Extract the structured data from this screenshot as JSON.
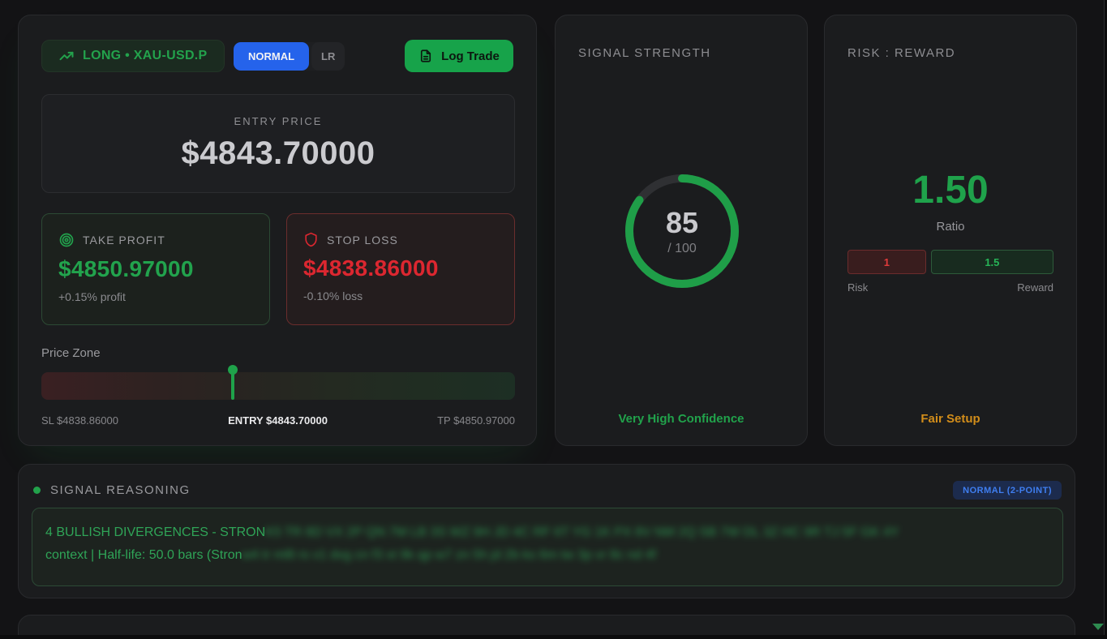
{
  "trade_card": {
    "direction_badge": "LONG • XAU-USD.P",
    "mode_toggle": {
      "selected": "NORMAL",
      "secondary": "LR"
    },
    "log_trade_button": "Log Trade",
    "entry": {
      "label": "ENTRY PRICE",
      "value": "$4843.70000"
    },
    "take_profit": {
      "label": "TAKE PROFIT",
      "value": "$4850.97000",
      "sub": "+0.15% profit"
    },
    "stop_loss": {
      "label": "STOP LOSS",
      "value": "$4838.86000",
      "sub": "-0.10% loss"
    },
    "price_zone": {
      "label": "Price Zone",
      "sl_label": "SL $4838.86000",
      "entry_label": "ENTRY $4843.70000",
      "tp_label": "TP $4850.97000",
      "marker_percent": 40.4
    }
  },
  "signal_strength": {
    "title": "SIGNAL STRENGTH",
    "score": "85",
    "score_value": 85,
    "max_label": "/ 100",
    "footer": "Very High Confidence"
  },
  "risk_reward": {
    "title": "RISK : REWARD",
    "ratio": "1.50",
    "ratio_label": "Ratio",
    "risk_value": "1",
    "reward_value": "1.5",
    "risk_numeric": 1,
    "reward_numeric": 1.5,
    "risk_label": "Risk",
    "reward_label": "Reward",
    "footer": "Fair Setup"
  },
  "signal_reasoning": {
    "title": "SIGNAL REASONING",
    "badge": "NORMAL (2-POINT)",
    "line1_visible": "4 BULLISH DIVERGENCES - STRON",
    "line1_redacted_placeholder": "K5 TR 8D VX 2P QN 7M LB 3S WZ 9H JD 4C RF 6T YG 1K PX 8V NM 2Q SB 7W DL 3Z HC 9R TJ 5F GK 4Y",
    "line2_visible": "context | Half-life: 50.0 bars (Stron",
    "line2_redacted_placeholder": "w4 tr ml8 rs v1 dvg cn f3 xt 9k qp w7 zn 5h jd 2b ks 6m tw 3p vr 8c nd 4f"
  },
  "colors": {
    "accent_green": "#22a24b",
    "accent_red": "#dc2730",
    "accent_blue": "#2563eb",
    "accent_amber": "#d28d1a",
    "card_bg": "#1b1c1e",
    "page_bg": "#131315"
  }
}
